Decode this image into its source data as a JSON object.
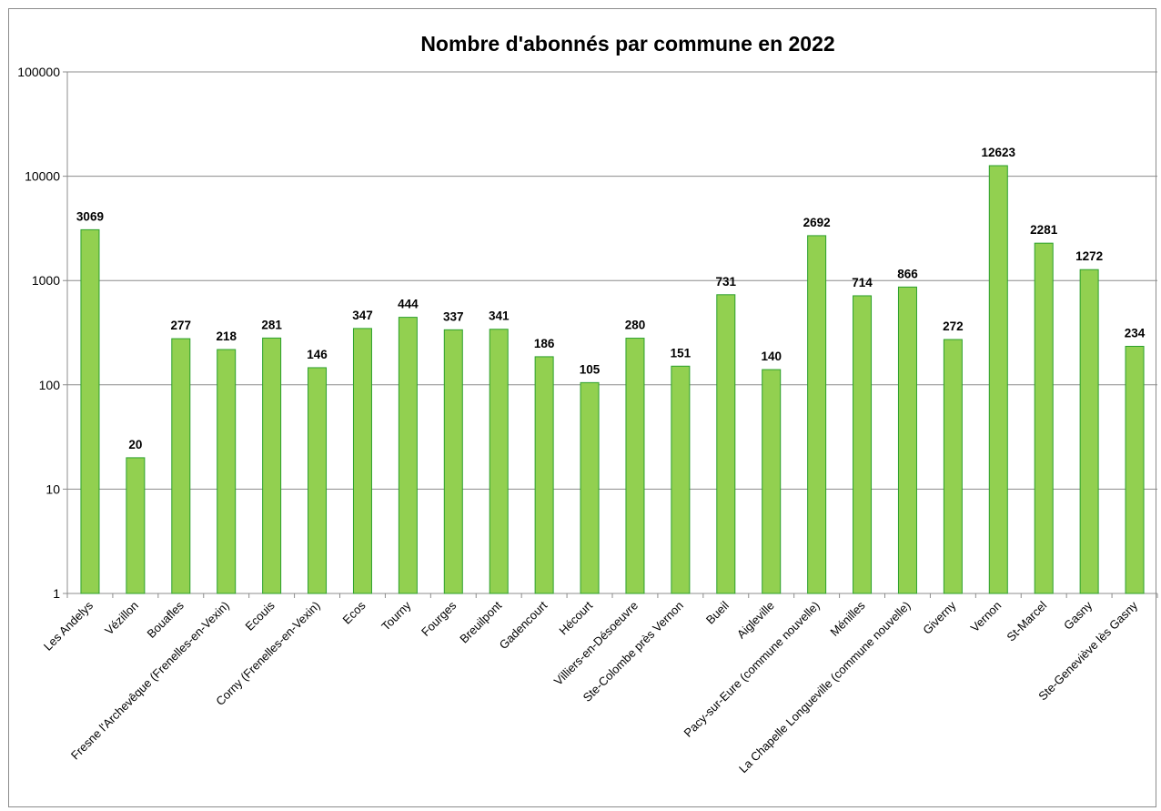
{
  "chart_data": {
    "type": "bar",
    "title": "Nombre d'abonnés par commune en 2022",
    "xlabel": "",
    "ylabel": "",
    "yscale": "log",
    "ylim": [
      1,
      100000
    ],
    "yticks": [
      "1",
      "10",
      "100",
      "1000",
      "10000",
      "100000"
    ],
    "grid": true,
    "legend": "none",
    "bar_color": "#92d050",
    "bar_edge_color": "#2ca02c",
    "categories": [
      "Les Andelys",
      "Vézillon",
      "Bouafles",
      "Fresne l'Archevêque (Frenelles-en-Vexin)",
      "Ecouis",
      "Corny (Frenelles-en-Vexin)",
      "Ecos",
      "Tourny",
      "Fourges",
      "Breuilpont",
      "Gadencourt",
      "Hécourt",
      "Villiers-en-Désoeuvre",
      "Ste-Colombe près Vernon",
      "Bueil",
      "Aigleville",
      "Pacy-sur-Eure (commune nouvelle)",
      "Ménilles",
      "La Chapelle Longueville (commune nouvelle)",
      "Giverny",
      "Vernon",
      "St-Marcel",
      "Gasny",
      "Ste-Geneviève lès Gasny"
    ],
    "values": [
      3069,
      20,
      277,
      218,
      281,
      146,
      347,
      444,
      337,
      341,
      186,
      105,
      280,
      151,
      731,
      140,
      2692,
      714,
      866,
      272,
      12623,
      2281,
      1272,
      234
    ]
  }
}
